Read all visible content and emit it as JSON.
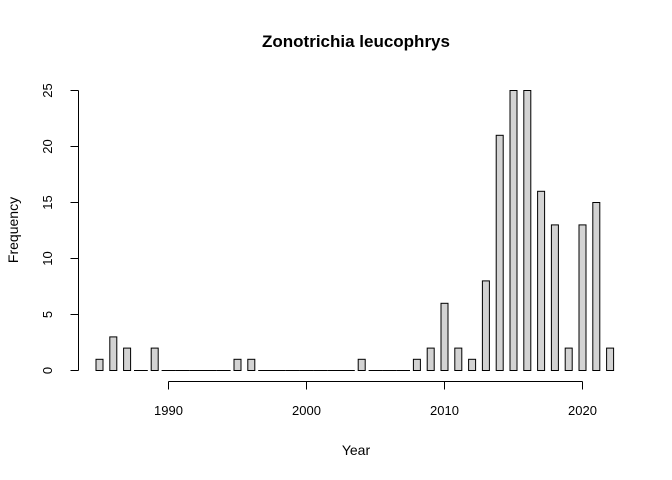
{
  "chart_data": {
    "type": "bar",
    "title": "Zonotrichia leucophrys",
    "xlabel": "Year",
    "ylabel": "Frequency",
    "x": [
      1985,
      1986,
      1987,
      1988,
      1989,
      1990,
      1991,
      1992,
      1993,
      1994,
      1995,
      1996,
      1997,
      1998,
      1999,
      2000,
      2001,
      2002,
      2003,
      2004,
      2005,
      2006,
      2007,
      2008,
      2009,
      2010,
      2011,
      2012,
      2013,
      2014,
      2015,
      2016,
      2017,
      2018,
      2019,
      2020,
      2021,
      2022
    ],
    "values": [
      1,
      3,
      2,
      0,
      2,
      0,
      0,
      0,
      0,
      0,
      1,
      1,
      0,
      0,
      0,
      0,
      0,
      0,
      0,
      1,
      0,
      0,
      0,
      1,
      2,
      6,
      2,
      1,
      8,
      21,
      25,
      25,
      16,
      13,
      2,
      13,
      15,
      2
    ],
    "xlim": [
      1985,
      2022
    ],
    "ylim": [
      0,
      25
    ],
    "xticks": [
      1990,
      2000,
      2010,
      2020
    ],
    "yticks": [
      0,
      5,
      10,
      15,
      20,
      25
    ],
    "grid": false,
    "legend": false,
    "colors": {
      "bar_fill": "#d3d3d3",
      "bar_stroke": "#000000"
    }
  }
}
